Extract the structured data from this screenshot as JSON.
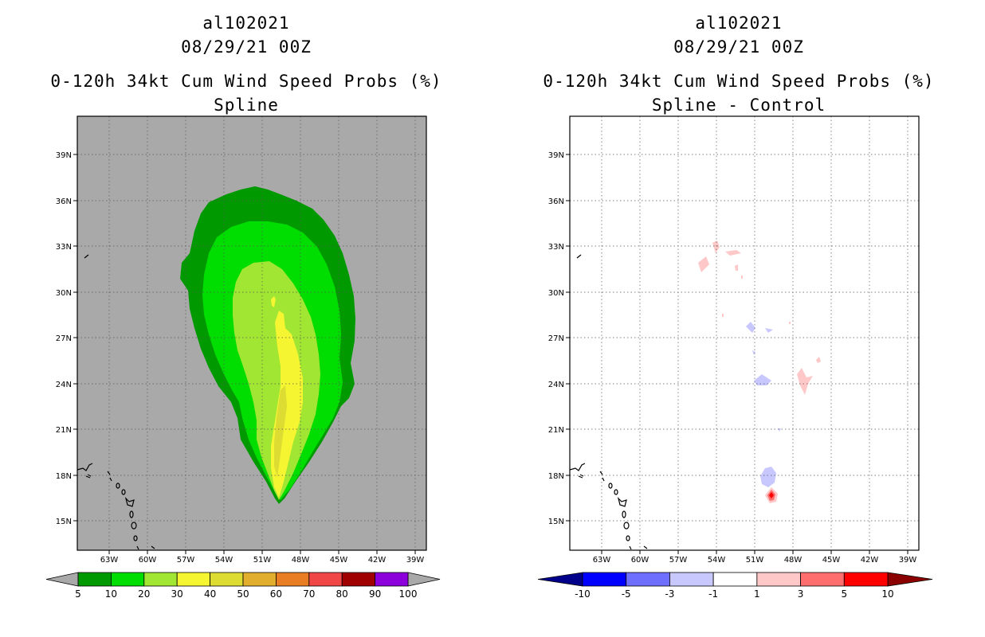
{
  "panels": [
    {
      "storm_id": "al102021",
      "datetime": "08/29/21 00Z",
      "product": "0-120h 34kt Cum Wind Speed Probs (%)",
      "subtitle": "Spline",
      "colorbar": {
        "labels": [
          "5",
          "10",
          "20",
          "30",
          "40",
          "50",
          "60",
          "70",
          "80",
          "90",
          "100"
        ],
        "colors": [
          "#009900",
          "#00dd00",
          "#a0e632",
          "#f5f532",
          "#dcdc32",
          "#e1af2d",
          "#e87d23",
          "#f04646",
          "#a00000",
          "#8c00dc"
        ],
        "under_color": "#a9a9a9",
        "over_color": "#a9a9a9"
      }
    },
    {
      "storm_id": "al102021",
      "datetime": "08/29/21 00Z",
      "product": "0-120h 34kt Cum Wind Speed Probs (%)",
      "subtitle": "Spline - Control",
      "colorbar": {
        "labels": [
          "-10",
          "-5",
          "-3",
          "-1",
          "1",
          "3",
          "5",
          "10"
        ],
        "colors": [
          "#0000ff",
          "#6e6eff",
          "#c8c8ff",
          "#ffffff",
          "#ffc8c8",
          "#ff6e6e",
          "#ff0000"
        ],
        "under_color": "#00008b",
        "over_color": "#8b0000"
      }
    }
  ],
  "map": {
    "lat_labels": [
      "39N",
      "36N",
      "33N",
      "30N",
      "27N",
      "24N",
      "21N",
      "18N",
      "15N"
    ],
    "lon_labels": [
      "63W",
      "60W",
      "57W",
      "54W",
      "51W",
      "48W",
      "45W",
      "42W",
      "39W"
    ],
    "background_color": "#a9a9a9"
  }
}
